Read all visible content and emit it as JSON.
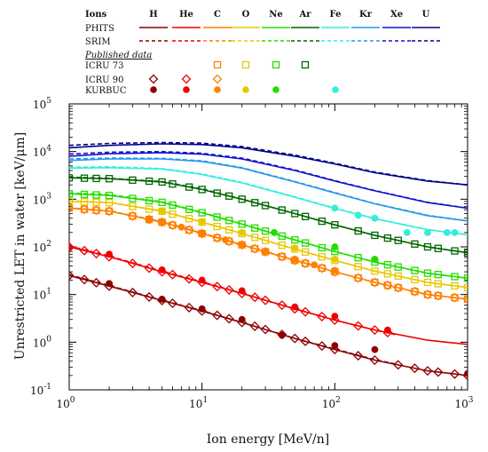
{
  "chart_data": {
    "type": "line",
    "xlabel": "Ion energy [MeV/n]",
    "ylabel": "Unrestricted LET in water [keV/μm]",
    "xscale": "log",
    "yscale": "log",
    "xlim": [
      1,
      1000
    ],
    "ylim": [
      0.1,
      100000
    ],
    "legend": {
      "ions_header": "Ions",
      "rows": [
        "PHITS",
        "SRIM",
        "Published data",
        "ICRU 73",
        "ICRU 90",
        "KURBUC"
      ]
    },
    "x_ticks": [
      {
        "v": 1,
        "label": "10",
        "exp": "0"
      },
      {
        "v": 10,
        "label": "10",
        "exp": "1"
      },
      {
        "v": 100,
        "label": "10",
        "exp": "2"
      },
      {
        "v": 1000,
        "label": "10",
        "exp": "3"
      }
    ],
    "y_ticks": [
      {
        "v": 0.1,
        "label": "10",
        "exp": "-1"
      },
      {
        "v": 1,
        "label": "10",
        "exp": "0"
      },
      {
        "v": 10,
        "label": "10",
        "exp": "1"
      },
      {
        "v": 100,
        "label": "10",
        "exp": "2"
      },
      {
        "v": 1000,
        "label": "10",
        "exp": "3"
      },
      {
        "v": 10000,
        "label": "10",
        "exp": "4"
      },
      {
        "v": 100000,
        "label": "10",
        "exp": "5"
      }
    ],
    "series": [
      {
        "name": "H",
        "color": "#8b0000",
        "phits": [
          [
            1,
            25
          ],
          [
            2,
            15
          ],
          [
            5,
            7.5
          ],
          [
            10,
            4.5
          ],
          [
            20,
            2.6
          ],
          [
            50,
            1.2
          ],
          [
            100,
            0.7
          ],
          [
            200,
            0.42
          ],
          [
            500,
            0.25
          ],
          [
            1000,
            0.2
          ]
        ],
        "srim": [
          [
            1,
            26
          ],
          [
            2,
            15.5
          ],
          [
            5,
            7.6
          ],
          [
            10,
            4.6
          ],
          [
            20,
            2.6
          ],
          [
            50,
            1.2
          ],
          [
            100,
            0.72
          ],
          [
            200,
            0.43
          ],
          [
            300,
            0.34
          ]
        ],
        "icru90": [
          1,
          1.3,
          1.6,
          2,
          3,
          4,
          5,
          6,
          8,
          10,
          13,
          16,
          20,
          25,
          30,
          40,
          50,
          60,
          80,
          100,
          150,
          200,
          300,
          400,
          500,
          600,
          800,
          1000
        ],
        "kurbuc": [
          [
            2,
            17
          ],
          [
            5,
            8
          ],
          [
            10,
            5
          ],
          [
            20,
            3
          ],
          [
            40,
            1.4
          ],
          [
            100,
            0.85
          ],
          [
            200,
            0.7
          ],
          [
            1000,
            0.22
          ]
        ]
      },
      {
        "name": "He",
        "color": "#ee0000",
        "phits": [
          [
            1,
            100
          ],
          [
            2,
            62
          ],
          [
            5,
            30
          ],
          [
            10,
            18
          ],
          [
            20,
            10.5
          ],
          [
            50,
            5
          ],
          [
            100,
            2.9
          ],
          [
            200,
            1.8
          ],
          [
            500,
            1.1
          ],
          [
            1000,
            0.9
          ]
        ],
        "srim": [
          [
            1,
            105
          ],
          [
            2,
            64
          ],
          [
            5,
            31
          ],
          [
            10,
            18.5
          ],
          [
            20,
            10.6
          ],
          [
            50,
            5
          ],
          [
            100,
            2.9
          ],
          [
            200,
            1.8
          ],
          [
            300,
            1.4
          ]
        ],
        "icru90": [
          1,
          1.3,
          1.6,
          2,
          3,
          4,
          5,
          6,
          8,
          10,
          13,
          16,
          20,
          25,
          30,
          40,
          50,
          60,
          80,
          100,
          150,
          200,
          250
        ],
        "kurbuc": [
          [
            1,
            95
          ],
          [
            2,
            70
          ],
          [
            5,
            33
          ],
          [
            10,
            20
          ],
          [
            20,
            12
          ],
          [
            50,
            5.5
          ],
          [
            100,
            3.5
          ],
          [
            250,
            1.8
          ]
        ]
      },
      {
        "name": "C",
        "color": "#ff7f00",
        "phits": [
          [
            1,
            650
          ],
          [
            2,
            560
          ],
          [
            5,
            330
          ],
          [
            10,
            190
          ],
          [
            20,
            110
          ],
          [
            50,
            52
          ],
          [
            100,
            30
          ],
          [
            200,
            18
          ],
          [
            500,
            10
          ],
          [
            1000,
            8
          ]
        ],
        "srim": [
          [
            1,
            660
          ],
          [
            2,
            570
          ],
          [
            5,
            340
          ],
          [
            10,
            195
          ],
          [
            20,
            112
          ],
          [
            50,
            53
          ],
          [
            100,
            30
          ],
          [
            200,
            18
          ],
          [
            500,
            10
          ],
          [
            1000,
            8
          ]
        ],
        "icru73": [
          1,
          1.3,
          1.6,
          2,
          3,
          4,
          5,
          6,
          8,
          10,
          13,
          16,
          20,
          25,
          30,
          40,
          50,
          60,
          80,
          100,
          150,
          200,
          250,
          300,
          400,
          500,
          600,
          800,
          1000
        ],
        "icru90": [
          1,
          1.3,
          1.6,
          2,
          3,
          4,
          5,
          6,
          8,
          10,
          13,
          16,
          20,
          25,
          30,
          40,
          50,
          60,
          80,
          100,
          150,
          200,
          250,
          300,
          400,
          500,
          600,
          800,
          1000
        ],
        "kurbuc": [
          [
            4,
            370
          ],
          [
            5,
            330
          ],
          [
            7,
            260
          ],
          [
            10,
            190
          ],
          [
            15,
            140
          ],
          [
            20,
            110
          ],
          [
            30,
            80
          ],
          [
            50,
            55
          ],
          [
            70,
            42
          ],
          [
            100,
            32
          ]
        ]
      },
      {
        "name": "O",
        "color": "#e6c800",
        "phits": [
          [
            1,
            900
          ],
          [
            2,
            850
          ],
          [
            5,
            560
          ],
          [
            10,
            330
          ],
          [
            20,
            190
          ],
          [
            50,
            90
          ],
          [
            100,
            52
          ],
          [
            200,
            31
          ],
          [
            500,
            18
          ],
          [
            1000,
            14
          ]
        ],
        "srim": [
          [
            1,
            920
          ],
          [
            2,
            860
          ],
          [
            5,
            570
          ],
          [
            10,
            335
          ],
          [
            20,
            192
          ],
          [
            50,
            90
          ],
          [
            100,
            52
          ],
          [
            200,
            31
          ],
          [
            500,
            18
          ],
          [
            1000,
            14
          ]
        ],
        "icru73": [
          1,
          1.3,
          1.6,
          2,
          3,
          4,
          5,
          6,
          8,
          10,
          13,
          16,
          20,
          25,
          30,
          40,
          50,
          60,
          80,
          100,
          150,
          200,
          250,
          300,
          400,
          500,
          600,
          800,
          1000
        ],
        "kurbuc": [
          [
            5,
            570
          ],
          [
            10,
            340
          ],
          [
            20,
            200
          ],
          [
            50,
            95
          ],
          [
            100,
            55
          ]
        ]
      },
      {
        "name": "Ne",
        "color": "#22dd00",
        "phits": [
          [
            1,
            1300
          ],
          [
            2,
            1200
          ],
          [
            5,
            860
          ],
          [
            10,
            520
          ],
          [
            20,
            300
          ],
          [
            50,
            140
          ],
          [
            100,
            80
          ],
          [
            200,
            48
          ],
          [
            500,
            28
          ],
          [
            1000,
            22
          ]
        ],
        "srim": [
          [
            1,
            1350
          ],
          [
            2,
            1250
          ],
          [
            5,
            880
          ],
          [
            10,
            530
          ],
          [
            20,
            305
          ],
          [
            50,
            140
          ],
          [
            100,
            80
          ],
          [
            200,
            48
          ],
          [
            500,
            28
          ],
          [
            1000,
            22
          ]
        ],
        "icru73": [
          1,
          1.3,
          1.6,
          2,
          3,
          4,
          5,
          6,
          8,
          10,
          13,
          16,
          20,
          25,
          30,
          40,
          50,
          60,
          80,
          100,
          150,
          200,
          250,
          300,
          400,
          500,
          600,
          800,
          1000
        ],
        "kurbuc": [
          [
            35,
            200
          ],
          [
            100,
            100
          ],
          [
            200,
            55
          ]
        ]
      },
      {
        "name": "Ar",
        "color": "#006400",
        "phits": [
          [
            1,
            2800
          ],
          [
            2,
            2700
          ],
          [
            5,
            2300
          ],
          [
            10,
            1600
          ],
          [
            20,
            1000
          ],
          [
            50,
            500
          ],
          [
            100,
            290
          ],
          [
            200,
            175
          ],
          [
            500,
            100
          ],
          [
            1000,
            75
          ]
        ],
        "srim": [
          [
            1,
            2900
          ],
          [
            2,
            2750
          ],
          [
            5,
            2350
          ],
          [
            10,
            1650
          ],
          [
            20,
            1000
          ],
          [
            50,
            500
          ],
          [
            100,
            290
          ],
          [
            200,
            175
          ],
          [
            500,
            100
          ],
          [
            1000,
            75
          ]
        ],
        "icru73": [
          1,
          1.3,
          1.6,
          2,
          3,
          4,
          5,
          6,
          8,
          10,
          13,
          16,
          20,
          25,
          30,
          40,
          50,
          60,
          80,
          100,
          150,
          200,
          250,
          300,
          400,
          500,
          600,
          800,
          1000
        ]
      },
      {
        "name": "Fe",
        "color": "#33eedd",
        "phits": [
          [
            1,
            4500
          ],
          [
            2,
            4600
          ],
          [
            5,
            4300
          ],
          [
            10,
            3300
          ],
          [
            20,
            2200
          ],
          [
            50,
            1100
          ],
          [
            100,
            640
          ],
          [
            200,
            390
          ],
          [
            500,
            230
          ],
          [
            1000,
            180
          ]
        ],
        "srim": [
          [
            1,
            4700
          ],
          [
            2,
            4800
          ],
          [
            5,
            4400
          ],
          [
            10,
            3400
          ],
          [
            20,
            2250
          ],
          [
            50,
            1120
          ],
          [
            100,
            650
          ],
          [
            200,
            395
          ],
          [
            500,
            230
          ],
          [
            1000,
            180
          ]
        ],
        "kurbuc": [
          [
            100,
            650
          ],
          [
            150,
            460
          ],
          [
            200,
            400
          ],
          [
            350,
            200
          ],
          [
            500,
            200
          ],
          [
            700,
            200
          ],
          [
            800,
            200
          ]
        ]
      },
      {
        "name": "Kr",
        "color": "#2299ee",
        "phits": [
          [
            1,
            6500
          ],
          [
            2,
            7000
          ],
          [
            5,
            7000
          ],
          [
            10,
            6200
          ],
          [
            20,
            4500
          ],
          [
            50,
            2300
          ],
          [
            100,
            1350
          ],
          [
            200,
            800
          ],
          [
            500,
            450
          ],
          [
            1000,
            350
          ]
        ],
        "srim": [
          [
            1,
            7000
          ],
          [
            2,
            7300
          ],
          [
            5,
            7200
          ],
          [
            10,
            6400
          ],
          [
            20,
            4600
          ],
          [
            50,
            2350
          ],
          [
            100,
            1380
          ],
          [
            200,
            810
          ],
          [
            500,
            460
          ],
          [
            1000,
            350
          ]
        ]
      },
      {
        "name": "Xe",
        "color": "#1111cc",
        "phits": [
          [
            1,
            8000
          ],
          [
            2,
            9000
          ],
          [
            5,
            9500
          ],
          [
            10,
            8800
          ],
          [
            20,
            7000
          ],
          [
            50,
            4000
          ],
          [
            100,
            2400
          ],
          [
            200,
            1500
          ],
          [
            500,
            850
          ],
          [
            1000,
            650
          ]
        ],
        "srim": [
          [
            1,
            8800
          ],
          [
            2,
            9700
          ],
          [
            5,
            10000
          ],
          [
            10,
            9200
          ],
          [
            20,
            7300
          ],
          [
            50,
            4100
          ],
          [
            100,
            2450
          ],
          [
            200,
            1520
          ],
          [
            500,
            860
          ],
          [
            1000,
            650
          ]
        ]
      },
      {
        "name": "U",
        "color": "#000088",
        "phits": [
          [
            1,
            12000
          ],
          [
            2,
            13500
          ],
          [
            5,
            14500
          ],
          [
            10,
            14000
          ],
          [
            20,
            12000
          ],
          [
            50,
            8000
          ],
          [
            100,
            5500
          ],
          [
            200,
            3600
          ],
          [
            500,
            2400
          ],
          [
            1000,
            2000
          ]
        ],
        "srim": [
          [
            1,
            13500
          ],
          [
            2,
            14800
          ],
          [
            5,
            15500
          ],
          [
            10,
            15000
          ],
          [
            20,
            12700
          ],
          [
            50,
            8400
          ],
          [
            100,
            5700
          ],
          [
            200,
            3700
          ],
          [
            500,
            2450
          ],
          [
            1000,
            2000
          ]
        ]
      }
    ]
  }
}
